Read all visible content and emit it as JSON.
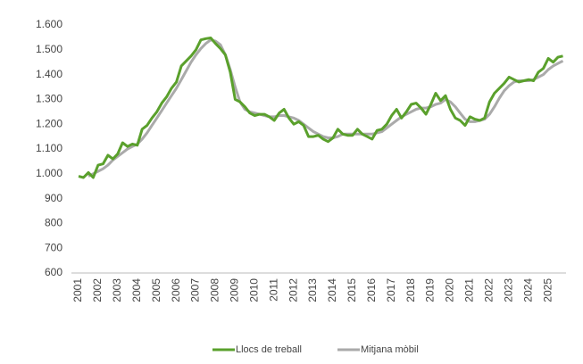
{
  "chart_data": {
    "type": "line",
    "categories": [
      "2001",
      null,
      null,
      null,
      "2002",
      null,
      null,
      null,
      "2003",
      null,
      null,
      null,
      "2004",
      null,
      null,
      null,
      "2005",
      null,
      null,
      null,
      "2006",
      null,
      null,
      null,
      "2007",
      null,
      null,
      null,
      "2008",
      null,
      null,
      null,
      "2009",
      null,
      null,
      null,
      "2010",
      null,
      null,
      null,
      "2011",
      null,
      null,
      null,
      "2012",
      null,
      null,
      null,
      "2013",
      null,
      null,
      null,
      "2014",
      null,
      null,
      null,
      "2015",
      null,
      null,
      null,
      "2016",
      null,
      null,
      null,
      "2017",
      null,
      null,
      null,
      "2018",
      null,
      null,
      null,
      "2019",
      null,
      null,
      null,
      "2020",
      null,
      null,
      null,
      "2021",
      null,
      null,
      null,
      "2022",
      null,
      null,
      null,
      "2023",
      null,
      null,
      null,
      "2024",
      null,
      null,
      null,
      "2025",
      null,
      null,
      null
    ],
    "series": [
      {
        "name": "Llocs de treball",
        "color": "#5aa02c",
        "values": [
          990,
          985,
          1005,
          985,
          1035,
          1040,
          1075,
          1060,
          1080,
          1125,
          1110,
          1120,
          1115,
          1180,
          1195,
          1225,
          1250,
          1285,
          1310,
          1345,
          1370,
          1435,
          1455,
          1475,
          1500,
          1540,
          1545,
          1548,
          1525,
          1505,
          1480,
          1410,
          1300,
          1290,
          1270,
          1245,
          1235,
          1240,
          1240,
          1230,
          1215,
          1245,
          1260,
          1225,
          1200,
          1210,
          1195,
          1150,
          1150,
          1155,
          1140,
          1130,
          1145,
          1180,
          1160,
          1155,
          1155,
          1180,
          1160,
          1150,
          1140,
          1175,
          1180,
          1200,
          1235,
          1260,
          1225,
          1250,
          1280,
          1285,
          1265,
          1240,
          1280,
          1325,
          1295,
          1315,
          1260,
          1225,
          1215,
          1195,
          1230,
          1220,
          1215,
          1225,
          1290,
          1325,
          1345,
          1365,
          1390,
          1380,
          1370,
          1375,
          1380,
          1375,
          1410,
          1425,
          1465,
          1450,
          1470,
          1475
        ]
      },
      {
        "name": "Mitjana mòbil",
        "color": "#aaaaaa",
        "values": [
          null,
          null,
          990,
          1000,
          1010,
          1020,
          1035,
          1055,
          1070,
          1085,
          1100,
          1110,
          1120,
          1140,
          1165,
          1195,
          1225,
          1255,
          1285,
          1315,
          1345,
          1380,
          1415,
          1450,
          1480,
          1505,
          1525,
          1540,
          1535,
          1520,
          1480,
          1420,
          1350,
          1290,
          1260,
          1250,
          1245,
          1240,
          1235,
          1230,
          1230,
          1235,
          1235,
          1230,
          1225,
          1215,
          1200,
          1185,
          1170,
          1160,
          1150,
          1145,
          1145,
          1150,
          1160,
          1160,
          1160,
          1160,
          1160,
          1160,
          1160,
          1165,
          1170,
          1185,
          1200,
          1215,
          1230,
          1240,
          1250,
          1260,
          1265,
          1265,
          1270,
          1280,
          1285,
          1300,
          1290,
          1270,
          1245,
          1220,
          1210,
          1210,
          1215,
          1220,
          1240,
          1270,
          1305,
          1335,
          1355,
          1370,
          1375,
          1375,
          1375,
          1380,
          1390,
          1400,
          1420,
          1435,
          1445,
          1455
        ]
      }
    ],
    "ylim": [
      600,
      1600
    ],
    "yticks": [
      600,
      700,
      800,
      900,
      {
        "value": 1000,
        "label": "1.000"
      },
      {
        "value": 1100,
        "label": "1.100"
      },
      {
        "value": 1200,
        "label": "1.200"
      },
      {
        "value": 1300,
        "label": "1.300"
      },
      {
        "value": 1400,
        "label": "1.400"
      },
      {
        "value": 1500,
        "label": "1.500"
      },
      {
        "value": 1600,
        "label": "1.600"
      }
    ],
    "grid": false,
    "legend": "bottom"
  }
}
